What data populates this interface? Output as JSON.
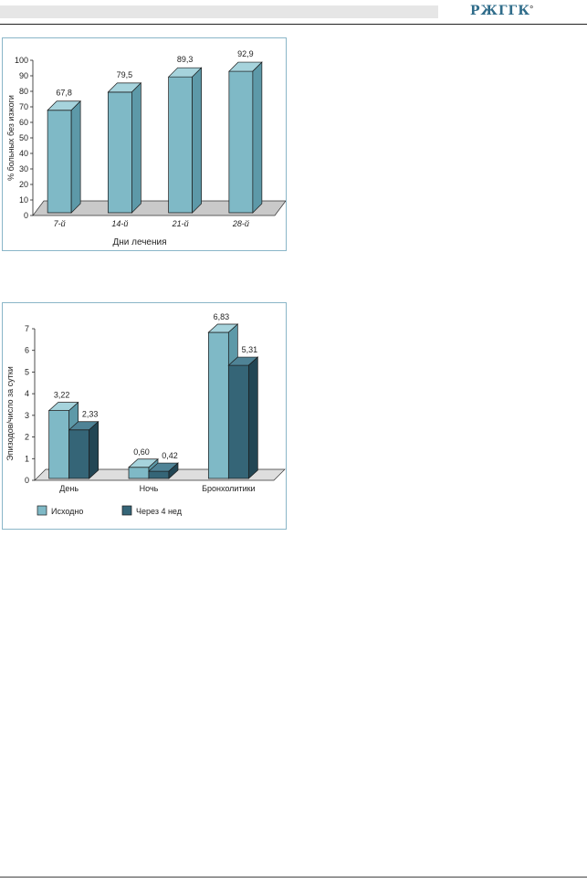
{
  "header": {
    "logo_text": "РЖГГК",
    "mark": "°"
  },
  "colors": {
    "bar_light": "#7fb9c6",
    "bar_light_top": "#a6d3dc",
    "bar_light_side": "#5d99a8",
    "bar_dark": "#356577",
    "bar_dark_top": "#4f8396",
    "bar_dark_side": "#224654",
    "floor": "#c9c9c9"
  },
  "chart_data": [
    {
      "type": "bar",
      "categories": [
        "7-й",
        "14-й",
        "21-й",
        "28-й"
      ],
      "values": [
        67.8,
        79.5,
        89.3,
        92.9
      ],
      "value_labels": [
        "67,8",
        "79,5",
        "89,3",
        "92,9"
      ],
      "xlabel": "Дни лечения",
      "ylabel": "% больных без изжоги",
      "ylim": [
        0,
        100
      ],
      "yticks": [
        "0",
        "10",
        "20",
        "30",
        "40",
        "50",
        "60",
        "70",
        "80",
        "90",
        "100"
      ],
      "three_d": true
    },
    {
      "type": "bar",
      "categories": [
        "День",
        "Ночь",
        "Бронхолитики"
      ],
      "series": [
        {
          "name": "Исходно",
          "values": [
            3.22,
            0.6,
            6.83
          ],
          "value_labels": [
            "3,22",
            "0,60",
            "6,83"
          ]
        },
        {
          "name": "Через 4 нед",
          "values": [
            2.33,
            0.42,
            5.31
          ],
          "value_labels": [
            "2,33",
            "0,42",
            "5,31"
          ]
        }
      ],
      "ylabel": "Эпизодов/число за сутки",
      "ylim": [
        0,
        7
      ],
      "yticks": [
        "0",
        "1",
        "2",
        "3",
        "4",
        "5",
        "6",
        "7"
      ],
      "legend_position": "bottom",
      "three_d": true
    }
  ]
}
